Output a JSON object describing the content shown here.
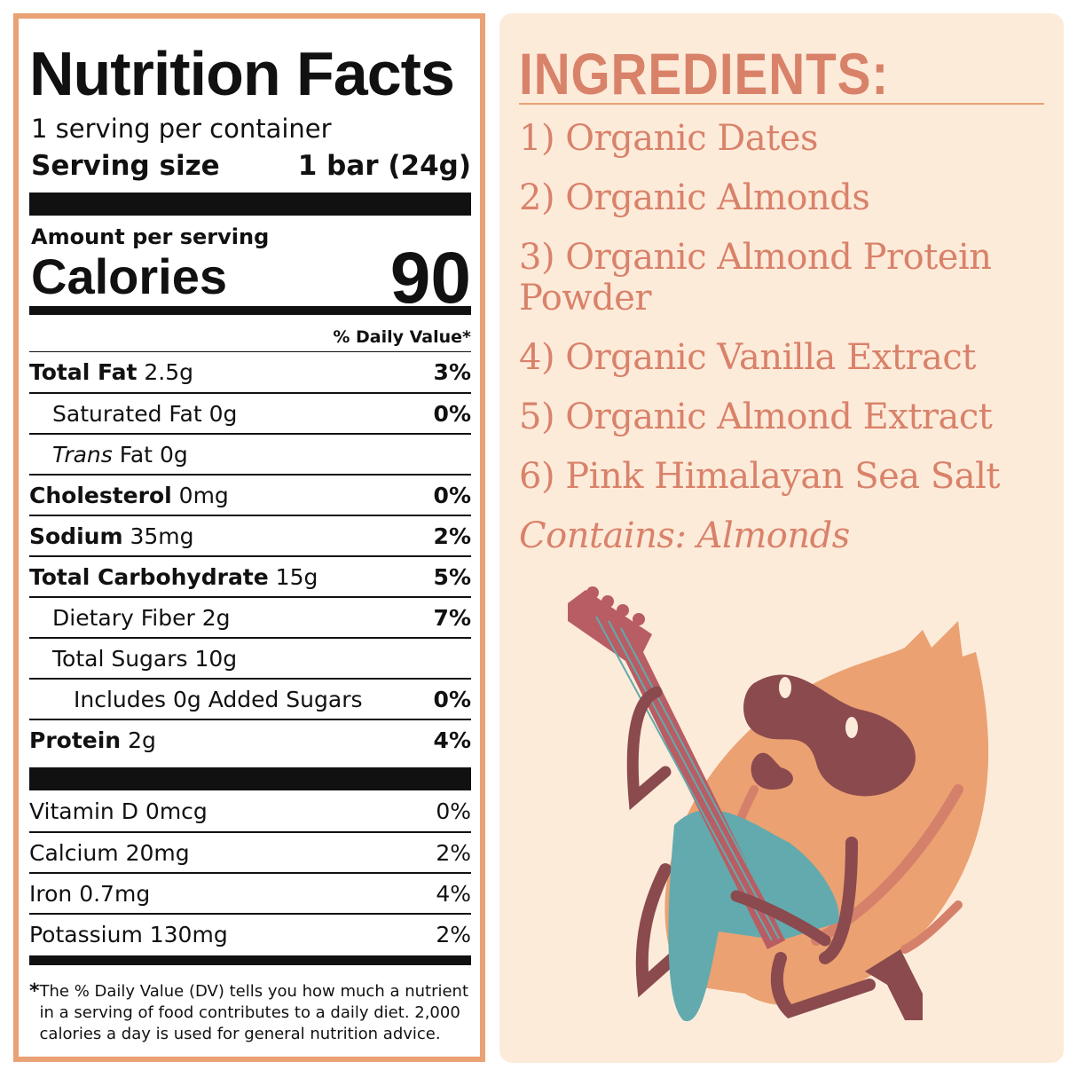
{
  "nutrition": {
    "title": "Nutrition Facts",
    "servings_per_container": "1 serving per container",
    "serving_size_label": "Serving size",
    "serving_size_value": "1 bar (24g)",
    "amount_per_serving": "Amount per serving",
    "calories_label": "Calories",
    "calories_value": "90",
    "dv_header": "% Daily Value*",
    "nutrients": [
      {
        "name": "Total Fat",
        "amount": "2.5g",
        "dv": "3%"
      },
      {
        "name": "Saturated Fat",
        "amount": "0g",
        "dv": "0%"
      },
      {
        "name": "Trans",
        "name_rest": "Fat",
        "amount": "0g",
        "dv": ""
      },
      {
        "name": "Cholesterol",
        "amount": "0mg",
        "dv": "0%"
      },
      {
        "name": "Sodium",
        "amount": "35mg",
        "dv": "2%"
      },
      {
        "name": "Total Carbohydrate",
        "amount": "15g",
        "dv": "5%"
      },
      {
        "name": "Dietary Fiber",
        "amount": "2g",
        "dv": "7%"
      },
      {
        "name": "Total Sugars",
        "amount": "10g",
        "dv": ""
      },
      {
        "name": "Includes 0g Added Sugars",
        "amount": "",
        "dv": "0%"
      },
      {
        "name": "Protein",
        "amount": "2g",
        "dv": "4%"
      }
    ],
    "vitamins": [
      {
        "name": "Vitamin D",
        "amount": "0mcg",
        "dv": "0%"
      },
      {
        "name": "Calcium",
        "amount": "20mg",
        "dv": "2%"
      },
      {
        "name": "Iron",
        "amount": "0.7mg",
        "dv": "4%"
      },
      {
        "name": "Potassium",
        "amount": "130mg",
        "dv": "2%"
      }
    ],
    "footnote_mark": "*",
    "footnote": "The % Daily Value (DV) tells you how much a nutrient in a serving of food contributes to a daily diet. 2,000 calories a day is used for general nutrition advice."
  },
  "ingredients": {
    "title": "INGREDIENTS:",
    "items": [
      "1) Organic Dates",
      "2) Organic Almonds",
      "3) Organic Almond Protein Powder",
      "4) Organic Vanilla Extract",
      "5) Organic Almond Extract",
      "6) Pink Himalayan Sea Salt"
    ],
    "contains": "Contains: Almonds"
  },
  "colors": {
    "border": "#E9A273",
    "panel": "#FDEBDA",
    "accent_text": "#D9826A",
    "almond": "#EBA171",
    "guitar": "#B85D63",
    "guitar_body": "#62AAAE",
    "limbs": "#8A4A4E"
  },
  "illustration": "almond-playing-guitar"
}
